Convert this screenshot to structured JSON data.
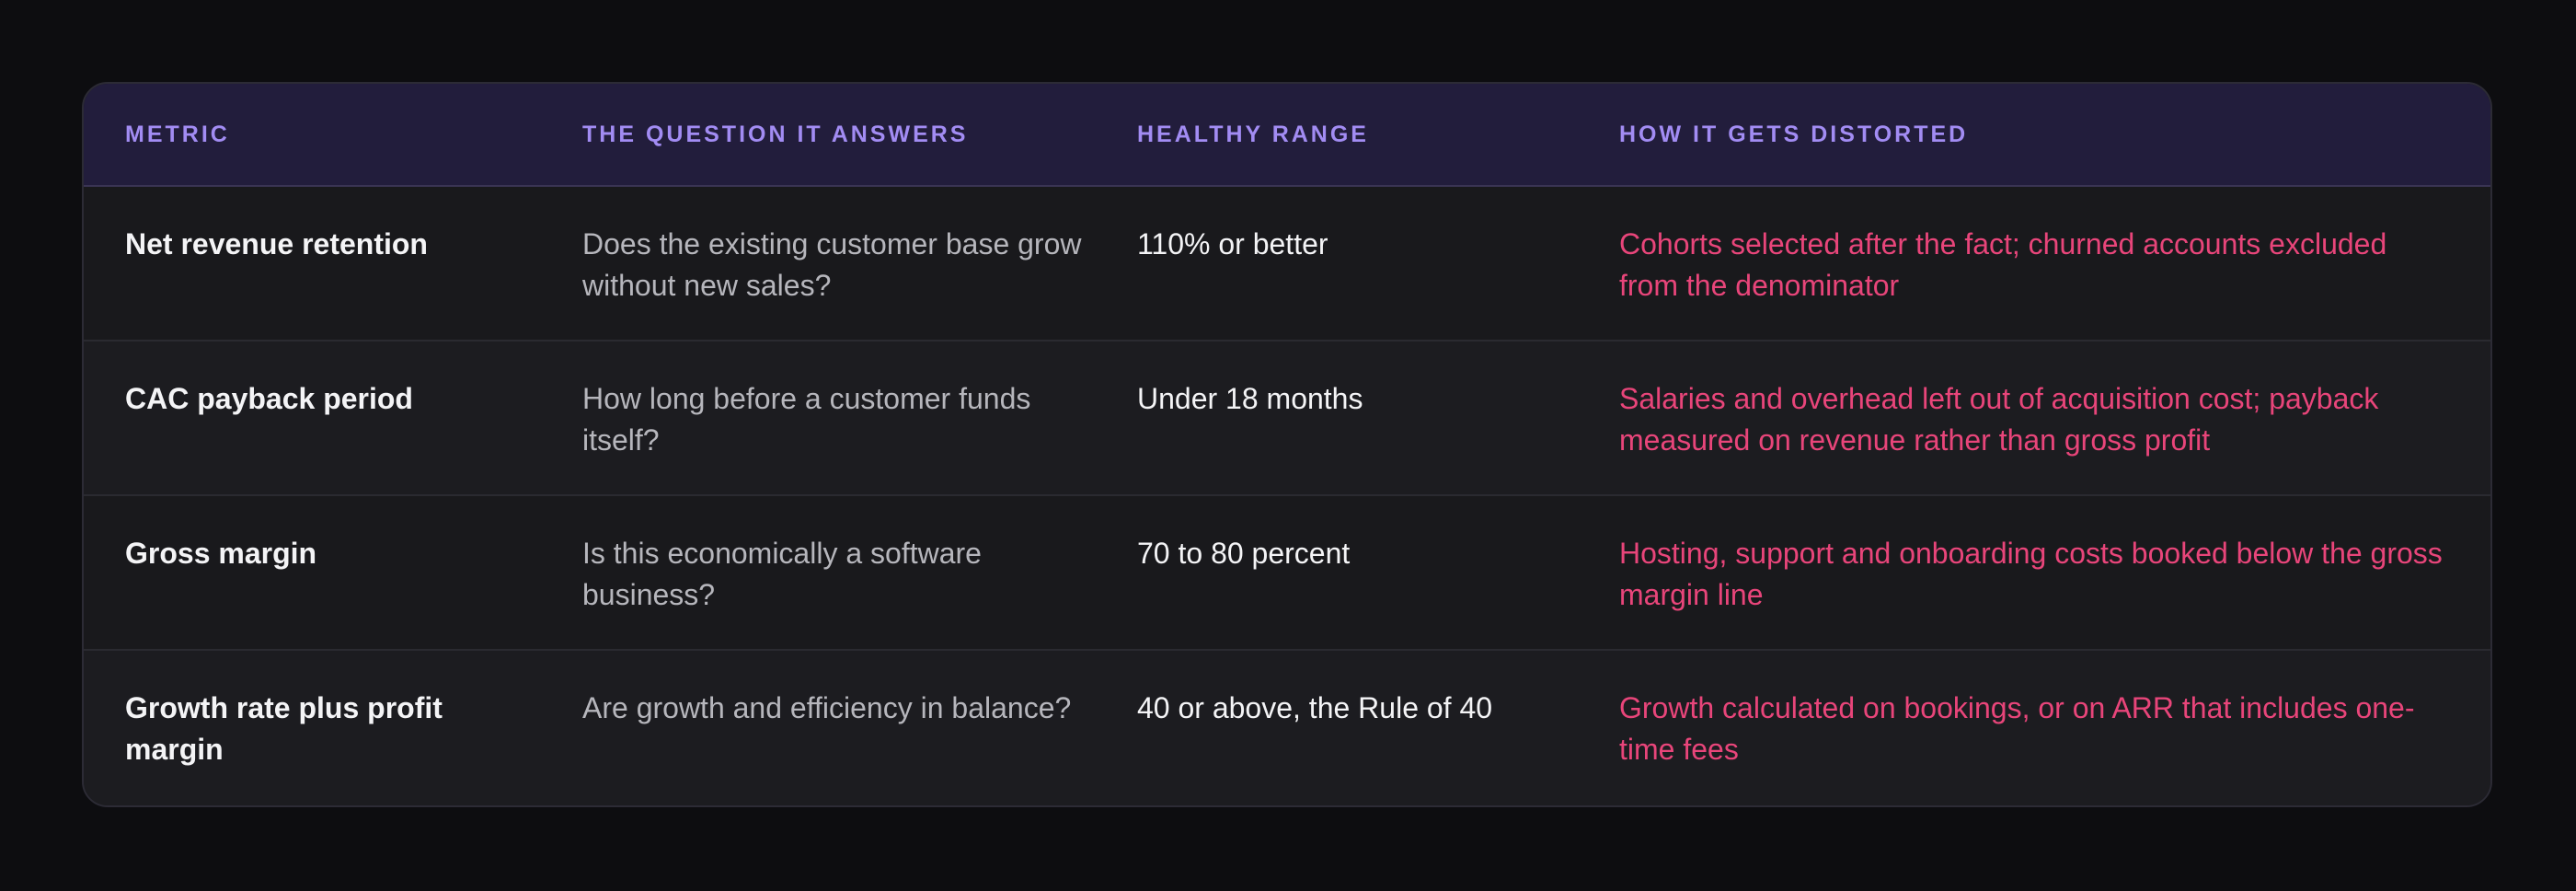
{
  "table": {
    "headers": {
      "metric": "METRIC",
      "question": "THE QUESTION IT ANSWERS",
      "range": "HEALTHY RANGE",
      "distortion": "HOW IT GETS DISTORTED"
    },
    "rows": [
      {
        "metric": "Net revenue retention",
        "question": "Does the existing customer base grow without new sales?",
        "range": "110% or better",
        "distortion": "Cohorts selected after the fact; churned accounts excluded from the denominator"
      },
      {
        "metric": "CAC payback period",
        "question": "How long before a customer funds itself?",
        "range": "Under 18 months",
        "distortion": "Salaries and overhead left out of acquisition cost; payback measured on revenue rather than gross profit"
      },
      {
        "metric": "Gross margin",
        "question": "Is this economically a software business?",
        "range": "70 to 80 percent",
        "distortion": "Hosting, support and onboarding costs booked below the gross margin line"
      },
      {
        "metric": "Growth rate plus profit margin",
        "question": "Are growth and efficiency in balance?",
        "range": "40 or above, the Rule of 40",
        "distortion": "Growth calculated on bookings, or on ARR that includes one-time fees"
      }
    ]
  },
  "colors": {
    "background": "#0d0d10",
    "header_background": "#221d3c",
    "header_text": "#a28cf3",
    "metric_text": "#f4f4f6",
    "question_text": "#b6b6bc",
    "distortion_text": "#e8457a"
  }
}
